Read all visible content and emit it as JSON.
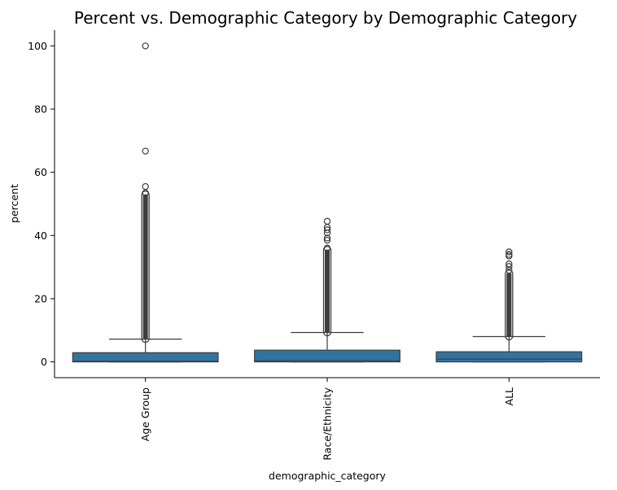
{
  "chart_data": {
    "type": "box",
    "title": "Percent vs. Demographic Category by Demographic Category",
    "xlabel": "demographic_category",
    "ylabel": "percent",
    "ylim": [
      -5,
      105
    ],
    "yticks": [
      0,
      20,
      40,
      60,
      80,
      100
    ],
    "categories": [
      "Age Group",
      "Race/Ethnicity",
      "ALL"
    ],
    "box_color": "#3274a1",
    "line_color": "#3d3d3d",
    "boxes": [
      {
        "category": "Age Group",
        "q1": 0.0,
        "median": 0.2,
        "q3": 2.9,
        "whisker_low": 0.0,
        "whisker_high": 7.2,
        "outlier_band": [
          7.2,
          53.0
        ],
        "outliers": [
          53.5,
          55.5,
          66.7,
          100.0
        ]
      },
      {
        "category": "Race/Ethnicity",
        "q1": 0.0,
        "median": 0.4,
        "q3": 3.7,
        "whisker_low": 0.0,
        "whisker_high": 9.3,
        "outlier_band": [
          9.3,
          35.5
        ],
        "outliers": [
          36.0,
          38.5,
          39.2,
          40.8,
          41.8,
          42.6,
          44.5
        ]
      },
      {
        "category": "ALL",
        "q1": 0.0,
        "median": 0.9,
        "q3": 3.2,
        "whisker_low": 0.0,
        "whisker_high": 8.0,
        "outlier_band": [
          8.0,
          28.0
        ],
        "outliers": [
          29.0,
          30.2,
          31.0,
          33.5,
          34.0,
          34.8
        ]
      }
    ]
  }
}
